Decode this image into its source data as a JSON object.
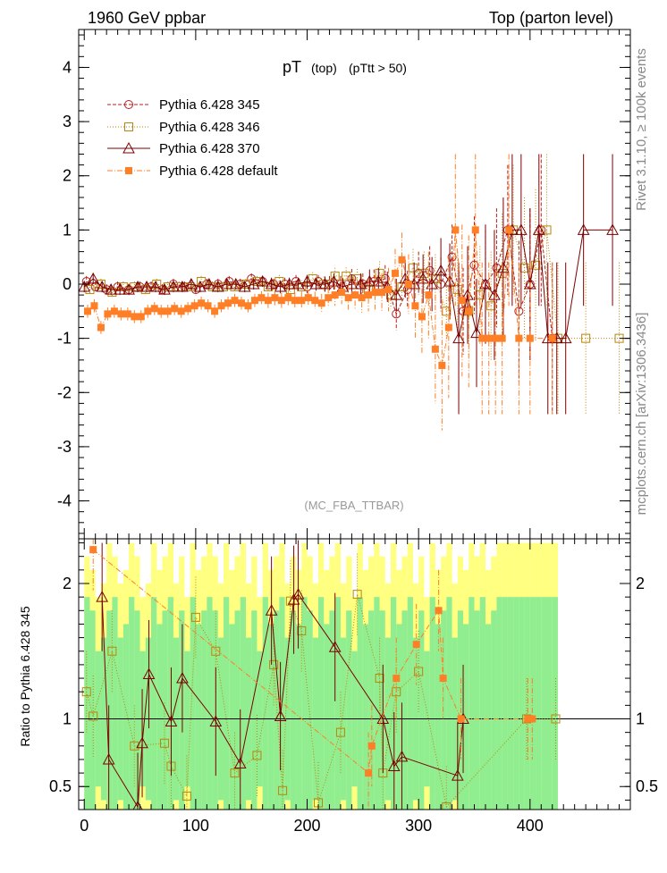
{
  "header": {
    "left": "1960 GeV ppbar",
    "right": "Top (parton level)"
  },
  "side_labels": {
    "rivet": "Rivet 3.1.10, ≥ 100k events",
    "mcplots": "mcplots.cern.ch [arXiv:1306.3436]"
  },
  "colors": {
    "c345": "#b22222",
    "c346": "#b8860b",
    "c370": "#7b0000",
    "cdef": "#ff7f27",
    "band_green": "#90ee90",
    "band_yellow": "#ffff80"
  },
  "chart_data": [
    {
      "type": "scatter",
      "title": "pT",
      "title_suffix_1": "(top)",
      "title_suffix_2": "(pTtt > 50)",
      "watermark": "(MC_FBA_TTBAR)",
      "xlabel": "",
      "ylabel": "",
      "xlim": [
        -5,
        490
      ],
      "ylim": [
        -4.7,
        4.7
      ],
      "yticks": [
        -4,
        -3,
        -2,
        -1,
        0,
        1,
        2,
        3,
        4
      ],
      "legend_position": "top-left",
      "legend": [
        {
          "key": "p345",
          "label": "Pythia 6.428 345",
          "marker": "circle",
          "dash": "4,2"
        },
        {
          "key": "p346",
          "label": "Pythia 6.428 346",
          "marker": "square",
          "dash": "1,2"
        },
        {
          "key": "p370",
          "label": "Pythia 6.428 370",
          "marker": "triangle",
          "dash": ""
        },
        {
          "key": "pdef",
          "label": "Pythia 6.428 default",
          "marker": "filled-square",
          "dash": "6,2,1,2"
        }
      ],
      "series": [
        {
          "key": "p345",
          "name": "Pythia 6.428 345",
          "x": [
            2,
            10,
            20,
            30,
            40,
            50,
            60,
            70,
            80,
            90,
            100,
            110,
            120,
            130,
            140,
            150,
            160,
            170,
            180,
            190,
            200,
            210,
            220,
            230,
            240,
            250,
            260,
            270,
            280,
            290,
            300,
            310,
            320,
            330,
            340,
            350,
            360,
            370,
            380,
            390,
            400,
            410,
            420
          ],
          "y": [
            0.05,
            -0.05,
            -0.1,
            -0.05,
            -0.1,
            -0.05,
            -0.05,
            -0.1,
            0.0,
            -0.05,
            -0.1,
            0.0,
            0.0,
            0.05,
            0.0,
            0.1,
            0.05,
            0.0,
            0.0,
            0.05,
            -0.05,
            0.05,
            0.0,
            0.0,
            0.1,
            0.0,
            0.05,
            0.1,
            -0.55,
            -0.1,
            0.2,
            0.25,
            0.0,
            0.5,
            -0.5,
            0.35,
            0.0,
            0.3,
            1.0,
            -0.5,
            0.0,
            1.0,
            -1.0
          ],
          "err": [
            0.1,
            0.1,
            0.1,
            0.1,
            0.1,
            0.1,
            0.1,
            0.1,
            0.1,
            0.1,
            0.1,
            0.1,
            0.1,
            0.1,
            0.1,
            0.1,
            0.1,
            0.1,
            0.12,
            0.12,
            0.12,
            0.12,
            0.15,
            0.15,
            0.18,
            0.2,
            0.22,
            0.25,
            0.3,
            0.35,
            0.4,
            0.45,
            0.5,
            0.6,
            0.8,
            0.9,
            1.0,
            1.1,
            1.2,
            1.3,
            1.4,
            1.4,
            1.4
          ]
        },
        {
          "key": "p346",
          "name": "Pythia 6.428 346",
          "x": [
            5,
            15,
            25,
            35,
            45,
            55,
            65,
            75,
            85,
            95,
            105,
            115,
            125,
            135,
            145,
            155,
            165,
            175,
            185,
            195,
            205,
            215,
            225,
            235,
            245,
            255,
            265,
            275,
            285,
            295,
            305,
            315,
            325,
            335,
            345,
            355,
            365,
            375,
            385,
            395,
            405,
            415,
            425,
            450,
            480
          ],
          "y": [
            -0.1,
            0.0,
            -0.15,
            -0.05,
            -0.05,
            -0.1,
            0.0,
            -0.05,
            -0.05,
            -0.05,
            0.05,
            -0.05,
            -0.05,
            -0.05,
            0.0,
            0.05,
            -0.05,
            0.05,
            -0.1,
            -0.05,
            0.1,
            0.0,
            0.15,
            0.15,
            0.1,
            -0.1,
            0.2,
            -0.2,
            -0.05,
            0.3,
            0.2,
            0.1,
            -0.5,
            -0.1,
            -0.5,
            -0.2,
            -0.4,
            0.2,
            1.0,
            0.3,
            0.35,
            1.0,
            -1.0,
            -1.0,
            -1.0
          ],
          "err": [
            0.1,
            0.1,
            0.1,
            0.1,
            0.1,
            0.1,
            0.1,
            0.1,
            0.1,
            0.1,
            0.1,
            0.1,
            0.1,
            0.1,
            0.1,
            0.1,
            0.1,
            0.12,
            0.12,
            0.12,
            0.12,
            0.14,
            0.15,
            0.16,
            0.18,
            0.2,
            0.22,
            0.25,
            0.3,
            0.35,
            0.4,
            0.45,
            0.5,
            0.7,
            0.8,
            0.9,
            1.0,
            1.1,
            1.2,
            1.3,
            1.4,
            1.4,
            1.4,
            1.4,
            1.4
          ]
        },
        {
          "key": "p370",
          "name": "Pythia 6.428 370",
          "x": [
            0,
            8,
            16,
            24,
            32,
            40,
            48,
            56,
            64,
            72,
            80,
            88,
            96,
            104,
            112,
            120,
            128,
            136,
            144,
            152,
            160,
            168,
            176,
            184,
            192,
            200,
            208,
            216,
            224,
            232,
            240,
            248,
            256,
            264,
            272,
            280,
            288,
            296,
            304,
            312,
            320,
            328,
            336,
            344,
            352,
            360,
            368,
            376,
            384,
            392,
            400,
            408,
            416,
            424,
            432,
            448,
            474
          ],
          "y": [
            -0.05,
            0.1,
            -0.05,
            -0.1,
            -0.1,
            -0.1,
            -0.05,
            -0.05,
            -0.05,
            -0.1,
            -0.05,
            -0.05,
            0.0,
            -0.05,
            0.0,
            -0.05,
            0.0,
            0.0,
            -0.05,
            0.0,
            0.05,
            0.0,
            -0.05,
            0.0,
            0.0,
            0.05,
            0.0,
            0.0,
            0.05,
            -0.05,
            0.0,
            0.0,
            0.05,
            0.05,
            -0.05,
            -0.2,
            0.1,
            0.0,
            0.1,
            0.0,
            0.25,
            0.05,
            -1.0,
            -0.2,
            -0.9,
            0.0,
            -0.2,
            0.3,
            1.0,
            1.0,
            0.0,
            1.0,
            -1.0,
            -1.0,
            -1.0,
            1.0,
            1.0
          ],
          "err": [
            0.1,
            0.1,
            0.1,
            0.1,
            0.1,
            0.1,
            0.1,
            0.1,
            0.1,
            0.1,
            0.1,
            0.1,
            0.1,
            0.1,
            0.1,
            0.1,
            0.1,
            0.1,
            0.1,
            0.1,
            0.1,
            0.12,
            0.12,
            0.12,
            0.12,
            0.12,
            0.12,
            0.14,
            0.15,
            0.16,
            0.18,
            0.2,
            0.22,
            0.25,
            0.28,
            0.3,
            0.35,
            0.4,
            0.45,
            0.5,
            0.6,
            0.7,
            1.4,
            0.9,
            1.0,
            1.1,
            1.2,
            1.3,
            1.4,
            1.4,
            1.4,
            1.4,
            1.4,
            1.4,
            1.4,
            1.4,
            1.4
          ]
        },
        {
          "key": "pdef",
          "name": "Pythia 6.428 default",
          "x": [
            3,
            9,
            15,
            21,
            27,
            33,
            39,
            45,
            51,
            57,
            63,
            69,
            75,
            81,
            87,
            93,
            99,
            105,
            111,
            117,
            123,
            129,
            135,
            141,
            147,
            153,
            159,
            165,
            171,
            177,
            183,
            189,
            195,
            201,
            207,
            213,
            219,
            225,
            231,
            237,
            243,
            249,
            255,
            261,
            267,
            273,
            279,
            285,
            291,
            297,
            303,
            309,
            315,
            321,
            327,
            333,
            339,
            345,
            351,
            357,
            363,
            369,
            375,
            381,
            390,
            400,
            420
          ],
          "y": [
            -0.5,
            -0.4,
            -0.8,
            -0.55,
            -0.5,
            -0.55,
            -0.55,
            -0.6,
            -0.6,
            -0.5,
            -0.45,
            -0.5,
            -0.5,
            -0.45,
            -0.5,
            -0.45,
            -0.4,
            -0.35,
            -0.4,
            -0.5,
            -0.4,
            -0.35,
            -0.3,
            -0.35,
            -0.4,
            -0.3,
            -0.25,
            -0.3,
            -0.25,
            -0.3,
            -0.25,
            -0.3,
            -0.3,
            -0.25,
            -0.3,
            -0.35,
            -0.25,
            -0.2,
            -0.15,
            -0.25,
            -0.2,
            -0.25,
            -0.2,
            -0.15,
            -0.15,
            -0.1,
            0.2,
            0.45,
            0.0,
            -0.4,
            -0.6,
            -0.2,
            -1.2,
            -1.5,
            -0.8,
            1.0,
            -0.3,
            -0.5,
            1.0,
            -1.0,
            -1.0,
            -1.0,
            -1.0,
            1.0,
            -1.0,
            -1.0,
            -1.0
          ],
          "err": [
            0.12,
            0.12,
            0.12,
            0.12,
            0.12,
            0.12,
            0.12,
            0.12,
            0.12,
            0.12,
            0.12,
            0.12,
            0.12,
            0.12,
            0.12,
            0.12,
            0.12,
            0.12,
            0.12,
            0.12,
            0.12,
            0.12,
            0.12,
            0.12,
            0.12,
            0.12,
            0.12,
            0.14,
            0.14,
            0.14,
            0.14,
            0.15,
            0.15,
            0.15,
            0.16,
            0.17,
            0.18,
            0.2,
            0.22,
            0.24,
            0.26,
            0.28,
            0.3,
            0.32,
            0.35,
            0.4,
            0.45,
            0.5,
            0.55,
            0.6,
            0.7,
            0.8,
            1.0,
            1.2,
            1.3,
            1.4,
            1.4,
            1.4,
            1.4,
            1.4,
            1.4,
            1.4,
            1.4,
            1.4,
            1.4,
            1.4,
            1.4
          ]
        }
      ]
    },
    {
      "type": "scatter",
      "title": "",
      "xlabel": "",
      "ylabel": "Ratio to Pythia 6.428 345",
      "xlim": [
        -5,
        490
      ],
      "ylim": [
        0.33,
        2.33
      ],
      "xticks": [
        0,
        100,
        200,
        300,
        400
      ],
      "yticks": [
        0.5,
        1,
        2
      ],
      "ytick_labels": [
        "0.5",
        "1",
        "2"
      ],
      "reference_line": 1,
      "band": {
        "x_start": 0,
        "bin_width": 5,
        "green_halfwidth": [
          0.9,
          0.8,
          0.5,
          0.6,
          0.8,
          0.9,
          0.6,
          0.7,
          0.9,
          0.8,
          0.5,
          0.6,
          0.9,
          0.7,
          0.8,
          0.9,
          0.6,
          0.8,
          0.5,
          0.9,
          0.7,
          0.8,
          0.9,
          0.8,
          0.6,
          0.9,
          0.7,
          0.8,
          0.9,
          0.6,
          0.8,
          0.5,
          0.9,
          0.7,
          0.8,
          0.9,
          0.6,
          0.8,
          0.7,
          0.9,
          0.8,
          0.6,
          0.9,
          0.7,
          0.8,
          0.9,
          0.6,
          0.8,
          0.5,
          0.9,
          0.7,
          0.8,
          0.9,
          0.8,
          0.6,
          0.9,
          0.7,
          0.8,
          0.9,
          0.6,
          0.8,
          0.5,
          0.9,
          0.7,
          0.8,
          0.9,
          0.6,
          0.8,
          0.7,
          0.9,
          0.8,
          0.9,
          0.7,
          0.8,
          0.9,
          0.9,
          0.9,
          0.9,
          0.9,
          0.9,
          0.9,
          0.9,
          0.9,
          0.9,
          0.9
        ],
        "yellow_halfwidth": [
          1.2,
          1.1,
          0.9,
          1.0,
          1.3,
          1.2,
          1.0,
          1.1,
          1.3,
          1.2,
          0.9,
          1.0,
          1.3,
          1.1,
          1.2,
          1.3,
          1.0,
          1.2,
          0.9,
          1.3,
          1.1,
          1.2,
          1.3,
          1.2,
          1.0,
          1.3,
          1.1,
          1.2,
          1.3,
          1.0,
          1.2,
          0.9,
          1.3,
          1.1,
          1.2,
          1.3,
          1.0,
          1.2,
          1.1,
          1.3,
          1.2,
          1.0,
          1.3,
          1.1,
          1.2,
          1.3,
          1.0,
          1.2,
          0.9,
          1.3,
          1.1,
          1.2,
          1.3,
          1.2,
          1.0,
          1.3,
          1.1,
          1.2,
          1.3,
          1.0,
          1.2,
          0.9,
          1.3,
          1.1,
          1.2,
          1.3,
          1.0,
          1.2,
          1.1,
          1.3,
          1.2,
          1.3,
          1.1,
          1.2,
          1.3,
          1.3,
          1.3,
          1.3,
          1.3,
          1.3,
          1.3,
          1.3,
          1.3,
          1.3,
          1.3
        ]
      },
      "series": [
        {
          "key": "r346",
          "name": "Pythia 6.428 346",
          "x": [
            2,
            8,
            25,
            45,
            72,
            78,
            92,
            100,
            118,
            135,
            155,
            170,
            178,
            185,
            195,
            210,
            230,
            245,
            265,
            268,
            280,
            300,
            325,
            397,
            423
          ],
          "y": [
            1.2,
            1.02,
            1.5,
            0.8,
            0.82,
            0.65,
            0.43,
            1.75,
            1.5,
            0.6,
            0.73,
            1.4,
            0.47,
            1.87,
            1.65,
            0.38,
            0.9,
            1.92,
            1.3,
            0.6,
            1.2,
            1.35,
            0.35,
            1.0,
            1.0
          ],
          "err": [
            0.3,
            0.3,
            0.3,
            0.3,
            0.3,
            0.3,
            0.3,
            0.3,
            0.3,
            0.3,
            0.3,
            0.3,
            0.3,
            0.3,
            0.3,
            0.3,
            0.3,
            0.3,
            0.3,
            0.3,
            0.3,
            0.3,
            0.3,
            0.3,
            0.3
          ]
        },
        {
          "key": "r370",
          "name": "Pythia 6.428 370",
          "x": [
            16,
            22,
            48,
            52,
            58,
            78,
            88,
            118,
            140,
            168,
            176,
            188,
            192,
            225,
            268,
            278,
            285,
            335,
            340
          ],
          "y": [
            1.9,
            0.7,
            0.35,
            0.82,
            1.33,
            0.98,
            1.3,
            0.98,
            0.67,
            1.8,
            1.02,
            1.88,
            1.92,
            1.53,
            1.0,
            0.65,
            0.72,
            0.58,
            1.0
          ],
          "err": [
            0.4,
            0.4,
            0.4,
            0.4,
            0.4,
            0.4,
            0.4,
            0.4,
            0.4,
            0.4,
            0.4,
            0.4,
            0.4,
            0.4,
            0.4,
            0.4,
            0.4,
            0.4,
            0.4
          ]
        },
        {
          "key": "rdef",
          "name": "Pythia 6.428 default",
          "x": [
            8,
            255,
            258,
            280,
            298,
            318,
            322,
            338,
            398,
            402
          ],
          "y": [
            2.25,
            0.6,
            0.8,
            1.3,
            1.55,
            1.8,
            1.3,
            1.0,
            1.0,
            1.0
          ],
          "err": [
            0.3,
            0.3,
            0.3,
            0.3,
            0.3,
            0.3,
            0.3,
            0.3,
            0.3,
            0.3
          ]
        }
      ]
    }
  ]
}
